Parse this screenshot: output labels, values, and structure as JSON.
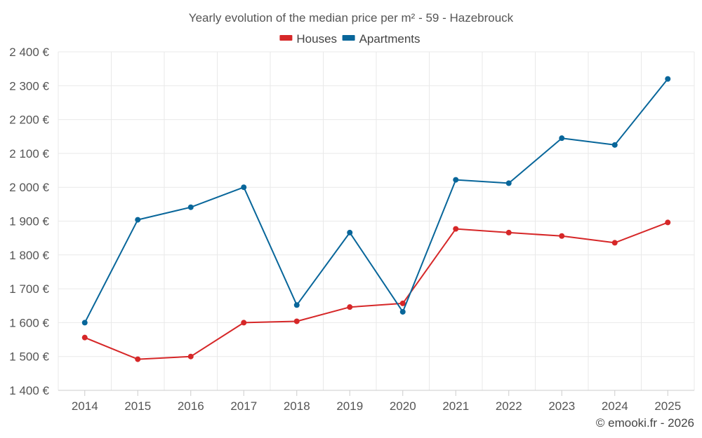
{
  "chart_data": {
    "type": "line",
    "title": "Yearly evolution of the median price per m² - 59 - Hazebrouck",
    "categories": [
      "2014",
      "2015",
      "2016",
      "2017",
      "2018",
      "2019",
      "2020",
      "2021",
      "2022",
      "2023",
      "2024",
      "2025"
    ],
    "series": [
      {
        "name": "Houses",
        "color": "#d62728",
        "values": [
          1556,
          1492,
          1500,
          1600,
          1604,
          1646,
          1657,
          1877,
          1866,
          1856,
          1836,
          1896
        ]
      },
      {
        "name": "Apartments",
        "color": "#08669a",
        "values": [
          1600,
          1904,
          1941,
          2000,
          1652,
          1866,
          1632,
          2022,
          2012,
          2145,
          2125,
          2320
        ]
      }
    ],
    "ylim": [
      1400,
      2400
    ],
    "yticks": [
      "1 400 €",
      "1 500 €",
      "1 600 €",
      "1 700 €",
      "1 800 €",
      "1 900 €",
      "2 000 €",
      "2 100 €",
      "2 200 €",
      "2 300 €",
      "2 400 €"
    ],
    "xlabel": "",
    "ylabel": "",
    "grid": true,
    "legend_position": "top-center"
  },
  "credit": "© emooki.fr - 2026"
}
